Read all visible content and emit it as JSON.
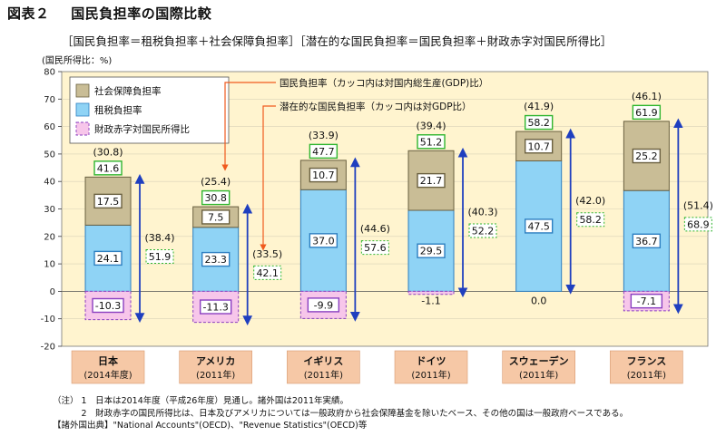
{
  "figure_number": "図表２",
  "figure_title": "国民負担率の国際比較",
  "subtitle": "［国民負担率＝租税負担率＋社会保障負担率］［潜在的な国民負担率＝国民負担率＋財政赤字対国民所得比］",
  "unit_label": "(国民所得比：%)",
  "legend": {
    "social": "社会保障負担率",
    "tax": "租税負担率",
    "deficit": "財政赤字対国民所得比"
  },
  "annotations": {
    "national_burden": "国民負担率（カッコ内は対国内総生産(GDP)比）",
    "potential_burden": "潜在的な国民負担率（カッコ内は対GDP比）"
  },
  "notes": [
    "（注） 1　日本は2014年度（平成26年度）見通し。諸外国は2011年実績。",
    "　　　 2　財政赤字の国民所得比は、日本及びアメリカについては一般政府から社会保障基金を除いたベース、その他の国は一般政府ベースである。",
    "【諸外国出典】\"National Accounts\"(OECD)、\"Revenue Statistics\"(OECD)等"
  ],
  "colors": {
    "social": "#c9bd96",
    "tax": "#8fd3f5",
    "deficit": "#f7c6ea",
    "plot_bg": "#fff4cf",
    "category_box": "#f6c8a6",
    "total_box_border": "#2fb52f",
    "arrow": "#1f3fbf",
    "annotation_arrow": "#f05a1e"
  },
  "chart_data": {
    "type": "bar",
    "ylim": [
      -20,
      80
    ],
    "yticks": [
      -20,
      -10,
      0,
      10,
      20,
      30,
      40,
      50,
      60,
      70,
      80
    ],
    "categories": [
      {
        "name": "日本",
        "sub": "(2014年度)"
      },
      {
        "name": "アメリカ",
        "sub": "(2011年)"
      },
      {
        "name": "イギリス",
        "sub": "(2011年)"
      },
      {
        "name": "ドイツ",
        "sub": "(2011年)"
      },
      {
        "name": "スウェーデン",
        "sub": "(2011年)"
      },
      {
        "name": "フランス",
        "sub": "(2011年)"
      }
    ],
    "series": [
      {
        "name": "租税負担率",
        "values": [
          24.1,
          23.3,
          37.0,
          29.5,
          47.5,
          36.7
        ]
      },
      {
        "name": "社会保障負担率",
        "values": [
          17.5,
          7.5,
          10.7,
          21.7,
          10.7,
          25.2
        ]
      },
      {
        "name": "財政赤字対国民所得比",
        "values": [
          -10.3,
          -11.3,
          -9.9,
          -1.1,
          0.0,
          -7.1
        ]
      }
    ],
    "tax_labels": [
      "24.1",
      "23.3",
      "37.0",
      "29.5",
      "47.5",
      "36.7"
    ],
    "social_labels": [
      "17.5",
      "7.5",
      "10.7",
      "21.7",
      "10.7",
      "25.2"
    ],
    "deficit_labels": [
      "-10.3",
      "-11.3",
      "-9.9",
      "-1.1",
      "0.0",
      "-7.1"
    ],
    "national_burden": [
      "41.6",
      "30.8",
      "47.7",
      "51.2",
      "58.2",
      "61.9"
    ],
    "national_burden_gdp": [
      "(30.8)",
      "(25.4)",
      "(33.9)",
      "(39.4)",
      "(41.9)",
      "(46.1)"
    ],
    "potential_burden": [
      "51.9",
      "42.1",
      "57.6",
      "52.2",
      "58.2",
      "68.9"
    ],
    "potential_burden_gdp": [
      "(38.4)",
      "(33.5)",
      "(44.6)",
      "(40.3)",
      "(42.0)",
      "(51.4)"
    ]
  }
}
